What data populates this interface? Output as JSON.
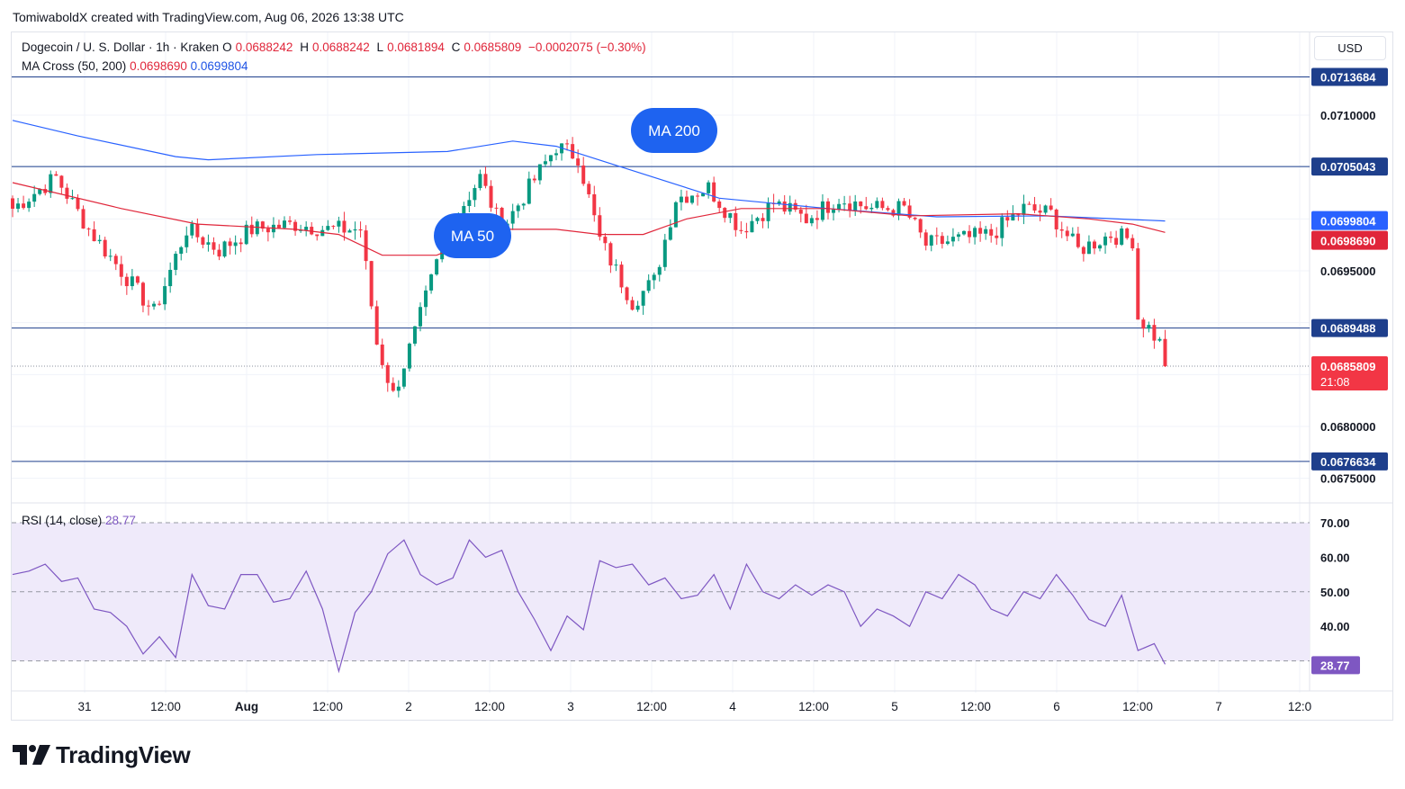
{
  "header": {
    "credit": "TomiwaboldX created with TradingView.com, Aug 06, 2026 13:38 UTC"
  },
  "legend": {
    "symbol": "Dogecoin / U. S. Dollar · 1h · Kraken",
    "o_label": "O",
    "o": "0.0688242",
    "h_label": "H",
    "h": "0.0688242",
    "l_label": "L",
    "l": "0.0681894",
    "c_label": "C",
    "c": "0.0685809",
    "change": "−0.0002075 (−0.30%)",
    "ma_name": "MA Cross (50, 200)",
    "ma50_value": "0.0698690",
    "ma200_value": "0.0699804"
  },
  "currency": "USD",
  "rsi_legend": {
    "name": "RSI (14, close)",
    "value": "28.77"
  },
  "annotations": {
    "ma50": "MA 50",
    "ma200": "MA 200"
  },
  "brand": {
    "name": "TradingView"
  },
  "colors": {
    "up": "#089981",
    "down": "#f23645",
    "ma50": "#e0263a",
    "ma200": "#2962ff",
    "hline": "#1e3f8c",
    "rsi": "#7e57c2",
    "rsi_band": "#efeafa",
    "bubble": "#1e63f0"
  },
  "chart_data": [
    {
      "type": "candlestick",
      "title": "Dogecoin / U. S. Dollar · 1h · Kraken",
      "ylim": [
        0.0673,
        0.0716
      ],
      "x_ticks": [
        "31",
        "12:00",
        "Aug",
        "12:00",
        "2",
        "12:00",
        "3",
        "12:00",
        "4",
        "12:00",
        "5",
        "12:00",
        "6",
        "12:00",
        "7",
        "12:0"
      ],
      "y_ticks": [
        "0.0710000",
        "0.0695000",
        "0.0680000",
        "0.0675000"
      ],
      "horizontal_levels": [
        "0.0713684",
        "0.0705043",
        "0.0689488",
        "0.0676634"
      ],
      "last_price_label": {
        "price": "0.0685809",
        "countdown": "21:08"
      },
      "ma_labels": {
        "ma200": "0.0699804",
        "ma50": "0.0698690"
      },
      "anchors": [
        {
          "i": 0,
          "p": 0.0701
        },
        {
          "i": 8,
          "p": 0.0704
        },
        {
          "i": 14,
          "p": 0.0699
        },
        {
          "i": 20,
          "p": 0.0695
        },
        {
          "i": 26,
          "p": 0.0691
        },
        {
          "i": 32,
          "p": 0.0699
        },
        {
          "i": 38,
          "p": 0.0697
        },
        {
          "i": 44,
          "p": 0.0699
        },
        {
          "i": 52,
          "p": 0.06995
        },
        {
          "i": 58,
          "p": 0.0699
        },
        {
          "i": 64,
          "p": 0.0699
        },
        {
          "i": 67,
          "p": 0.0688
        },
        {
          "i": 70,
          "p": 0.0683
        },
        {
          "i": 74,
          "p": 0.0689
        },
        {
          "i": 80,
          "p": 0.0699
        },
        {
          "i": 86,
          "p": 0.0704
        },
        {
          "i": 90,
          "p": 0.0699
        },
        {
          "i": 95,
          "p": 0.0703
        },
        {
          "i": 100,
          "p": 0.0707
        },
        {
          "i": 104,
          "p": 0.0706
        },
        {
          "i": 108,
          "p": 0.0698
        },
        {
          "i": 114,
          "p": 0.0692
        },
        {
          "i": 118,
          "p": 0.0694
        },
        {
          "i": 122,
          "p": 0.0702
        },
        {
          "i": 128,
          "p": 0.0703
        },
        {
          "i": 134,
          "p": 0.0699
        },
        {
          "i": 140,
          "p": 0.07015
        },
        {
          "i": 146,
          "p": 0.07
        },
        {
          "i": 152,
          "p": 0.0702
        },
        {
          "i": 158,
          "p": 0.0701
        },
        {
          "i": 164,
          "p": 0.0701
        },
        {
          "i": 168,
          "p": 0.06975
        },
        {
          "i": 174,
          "p": 0.0698
        },
        {
          "i": 180,
          "p": 0.06985
        },
        {
          "i": 186,
          "p": 0.0701
        },
        {
          "i": 191,
          "p": 0.07005
        },
        {
          "i": 196,
          "p": 0.0697
        },
        {
          "i": 202,
          "p": 0.06985
        },
        {
          "i": 206,
          "p": 0.0698
        },
        {
          "i": 207,
          "p": 0.06905
        },
        {
          "i": 209,
          "p": 0.06895
        },
        {
          "i": 211,
          "p": 0.0688
        },
        {
          "i": 212,
          "p": 0.06858
        }
      ],
      "ma50_points": [
        {
          "i": 0,
          "p": 0.07035
        },
        {
          "i": 20,
          "p": 0.0701
        },
        {
          "i": 34,
          "p": 0.06995
        },
        {
          "i": 52,
          "p": 0.0699
        },
        {
          "i": 60,
          "p": 0.06985
        },
        {
          "i": 68,
          "p": 0.06965
        },
        {
          "i": 78,
          "p": 0.06965
        },
        {
          "i": 90,
          "p": 0.0699
        },
        {
          "i": 100,
          "p": 0.0699
        },
        {
          "i": 108,
          "p": 0.06985
        },
        {
          "i": 116,
          "p": 0.06985
        },
        {
          "i": 124,
          "p": 0.07
        },
        {
          "i": 134,
          "p": 0.0701
        },
        {
          "i": 150,
          "p": 0.0701
        },
        {
          "i": 165,
          "p": 0.07003
        },
        {
          "i": 185,
          "p": 0.07005
        },
        {
          "i": 198,
          "p": 0.07
        },
        {
          "i": 206,
          "p": 0.06995
        },
        {
          "i": 212,
          "p": 0.06987
        }
      ],
      "ma200_points": [
        {
          "i": 0,
          "p": 0.07095
        },
        {
          "i": 12,
          "p": 0.0708
        },
        {
          "i": 30,
          "p": 0.0706
        },
        {
          "i": 36,
          "p": 0.07057
        },
        {
          "i": 56,
          "p": 0.07062
        },
        {
          "i": 80,
          "p": 0.07065
        },
        {
          "i": 92,
          "p": 0.07075
        },
        {
          "i": 100,
          "p": 0.0707
        },
        {
          "i": 112,
          "p": 0.0705
        },
        {
          "i": 130,
          "p": 0.0702
        },
        {
          "i": 150,
          "p": 0.0701
        },
        {
          "i": 170,
          "p": 0.07002
        },
        {
          "i": 190,
          "p": 0.07003
        },
        {
          "i": 212,
          "p": 0.06998
        }
      ]
    },
    {
      "type": "line",
      "title": "RSI (14, close)",
      "ylim": [
        25,
        75
      ],
      "y_ticks": [
        "70.00",
        "60.00",
        "50.00",
        "40.00"
      ],
      "levels": [
        70,
        50,
        30
      ],
      "current_value_label": "28.77",
      "x": [
        0,
        3,
        6,
        9,
        12,
        15,
        18,
        21,
        24,
        27,
        30,
        33,
        36,
        39,
        42,
        45,
        48,
        51,
        54,
        57,
        60,
        63,
        66,
        69,
        72,
        75,
        78,
        81,
        84,
        87,
        90,
        93,
        96,
        99,
        102,
        105,
        108,
        111,
        114,
        117,
        120,
        123,
        126,
        129,
        132,
        135,
        138,
        141,
        144,
        147,
        150,
        153,
        156,
        159,
        162,
        165,
        168,
        171,
        174,
        177,
        180,
        183,
        186,
        189,
        192,
        195,
        198,
        201,
        204,
        207,
        210,
        212
      ],
      "values": [
        55,
        56,
        58,
        53,
        54,
        45,
        44,
        40,
        32,
        37,
        31,
        55,
        46,
        45,
        55,
        55,
        47,
        48,
        56,
        45,
        27,
        44,
        50,
        61,
        65,
        55,
        52,
        54,
        65,
        60,
        62,
        50,
        42,
        33,
        43,
        39,
        59,
        57,
        58,
        52,
        54,
        48,
        49,
        55,
        45,
        58,
        50,
        48,
        52,
        49,
        52,
        50,
        40,
        45,
        43,
        40,
        50,
        48,
        55,
        52,
        45,
        43,
        50,
        48,
        55,
        49,
        42,
        40,
        49,
        33,
        35,
        29
      ]
    }
  ]
}
